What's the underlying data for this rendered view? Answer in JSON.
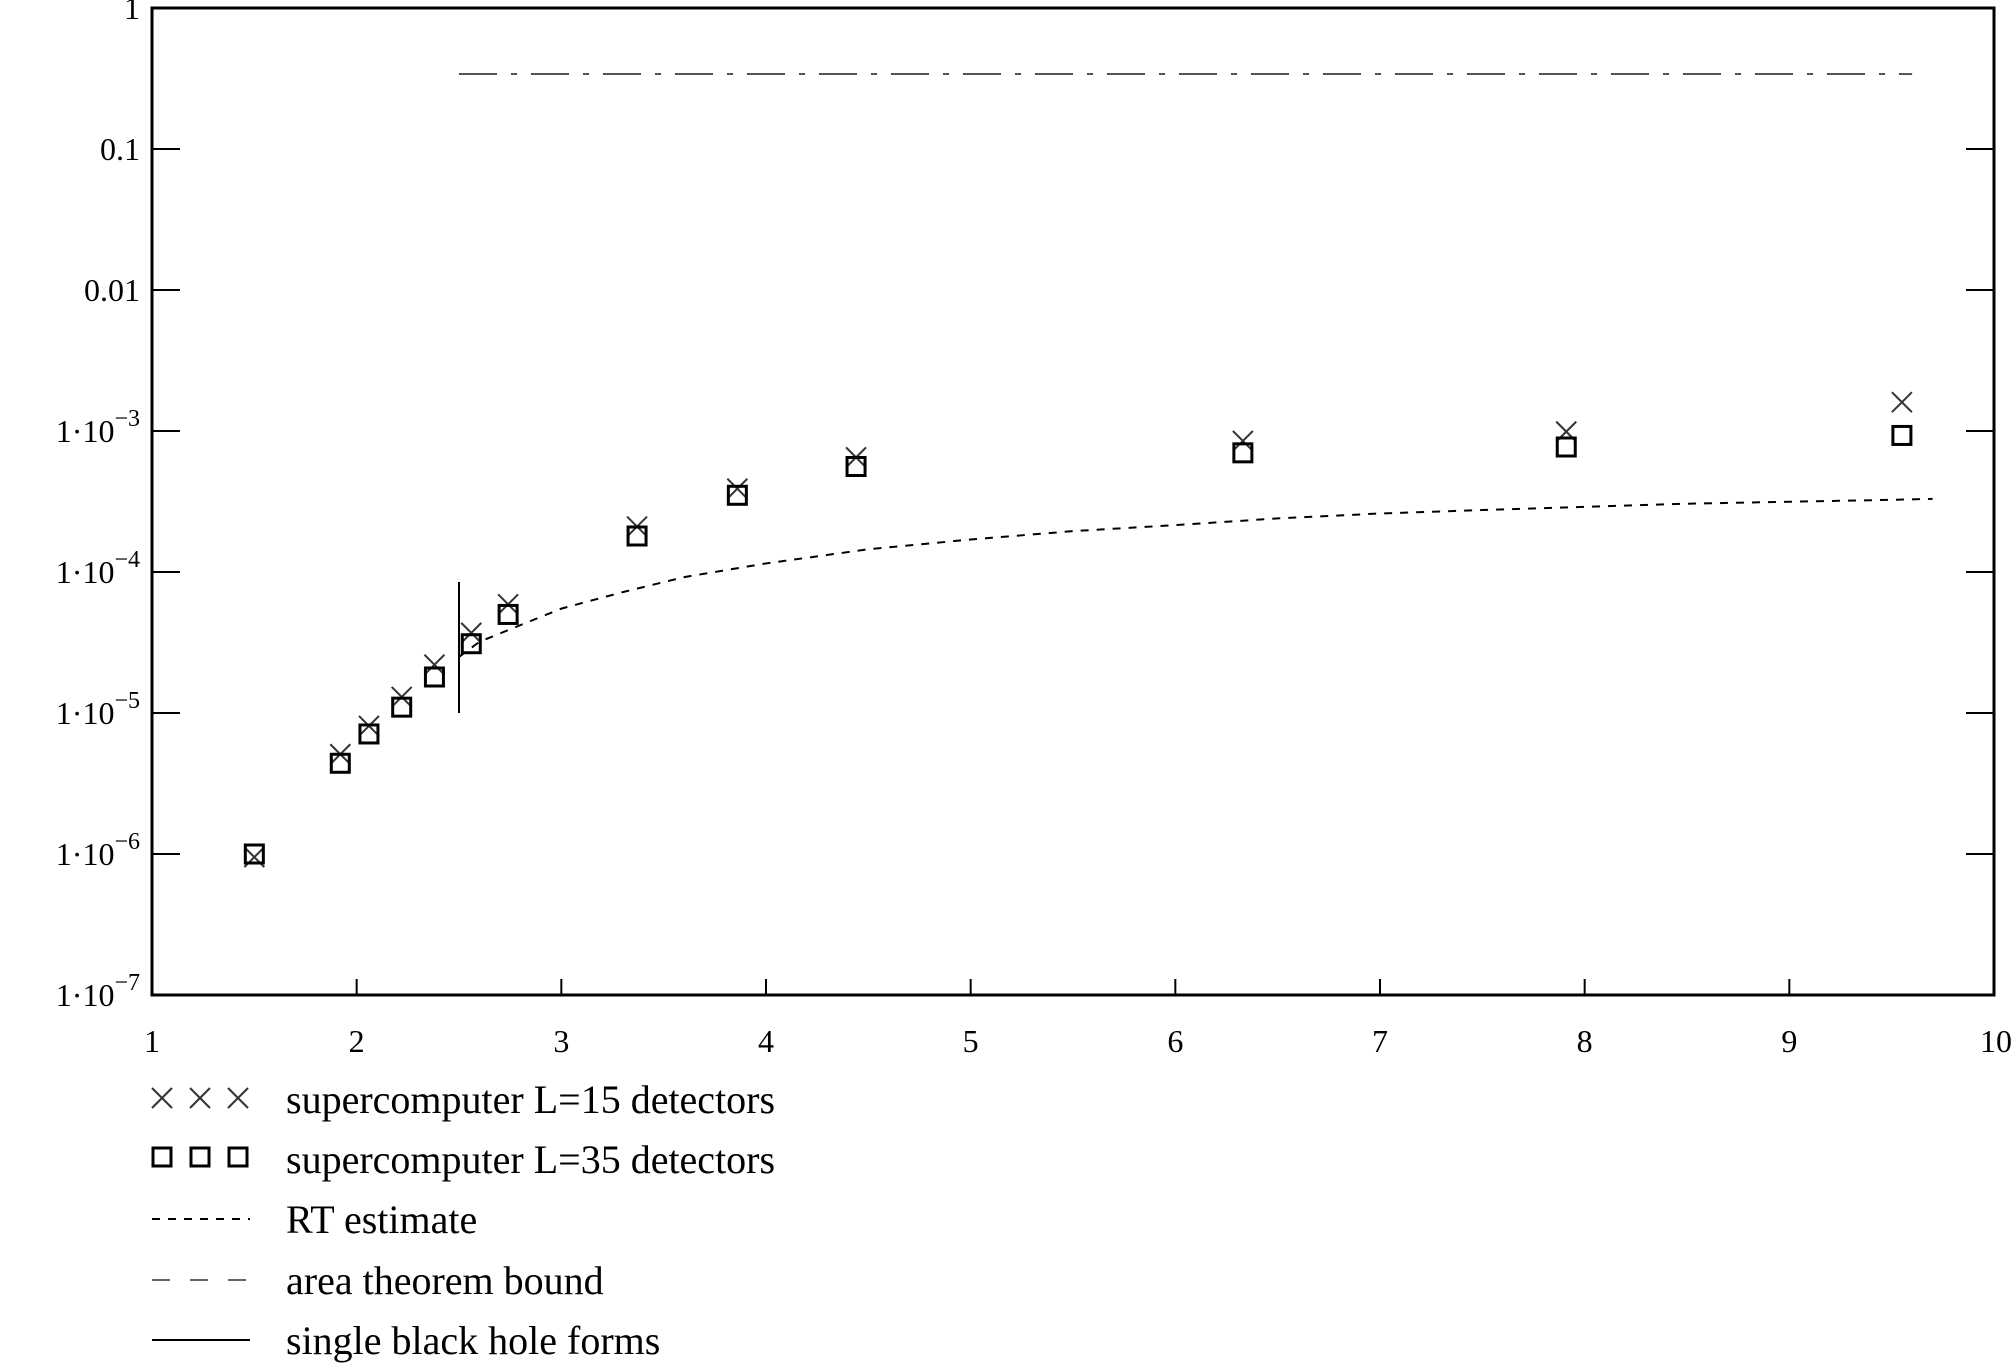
{
  "chart_data": {
    "type": "scatter",
    "title": "",
    "xlabel": "",
    "ylabel": "",
    "xlim": [
      1,
      10
    ],
    "ylim": [
      1e-07,
      1
    ],
    "y_scale": "log",
    "x_ticks": [
      {
        "value": 1,
        "label": "1"
      },
      {
        "value": 2,
        "label": "2"
      },
      {
        "value": 3,
        "label": "3"
      },
      {
        "value": 4,
        "label": "4"
      },
      {
        "value": 5,
        "label": "5"
      },
      {
        "value": 6,
        "label": "6"
      },
      {
        "value": 7,
        "label": "7"
      },
      {
        "value": 8,
        "label": "8"
      },
      {
        "value": 9,
        "label": "9"
      },
      {
        "value": 10,
        "label": "10"
      }
    ],
    "y_ticks": [
      {
        "value": 1,
        "label": "1",
        "mant": "1",
        "exp": ""
      },
      {
        "value": 0.1,
        "label": "0.1",
        "mant": "0.1",
        "exp": ""
      },
      {
        "value": 0.01,
        "label": "0.01",
        "mant": "0.01",
        "exp": ""
      },
      {
        "value": 0.001,
        "label": "1·10^-3",
        "mant": "1·10",
        "exp": "−3"
      },
      {
        "value": 0.0001,
        "label": "1·10^-4",
        "mant": "1·10",
        "exp": "−4"
      },
      {
        "value": 1e-05,
        "label": "1·10^-5",
        "mant": "1·10",
        "exp": "−5"
      },
      {
        "value": 1e-06,
        "label": "1·10^-6",
        "mant": "1·10",
        "exp": "−6"
      },
      {
        "value": 1e-07,
        "label": "1·10^-7",
        "mant": "1·10",
        "exp": "−7"
      }
    ],
    "series": [
      {
        "name": "supercomputer L=15 detectors",
        "marker": "x",
        "x": [
          1.5,
          1.92,
          2.06,
          2.22,
          2.38,
          2.56,
          2.74,
          3.37,
          3.86,
          4.44,
          6.33,
          7.91,
          9.55
        ],
        "y": [
          9.5e-07,
          5.1e-06,
          8.1e-06,
          1.3e-05,
          2.2e-05,
          3.7e-05,
          5.9e-05,
          0.00021,
          0.00039,
          0.00065,
          0.00085,
          0.00099,
          0.0016
        ]
      },
      {
        "name": "supercomputer L=35 detectors",
        "marker": "square",
        "x": [
          1.5,
          1.92,
          2.06,
          2.22,
          2.38,
          2.56,
          2.74,
          3.37,
          3.86,
          4.44,
          6.33,
          7.91,
          9.55
        ],
        "y": [
          1e-06,
          4.4e-06,
          7.1e-06,
          1.1e-05,
          1.8e-05,
          3.1e-05,
          5e-05,
          0.00018,
          0.00035,
          0.00056,
          0.0007,
          0.00077,
          0.00093
        ]
      },
      {
        "name": "RT estimate",
        "line": "dotted",
        "x": [
          2.5,
          2.6,
          2.8,
          3.0,
          3.3,
          3.6,
          4.0,
          4.5,
          5.0,
          5.5,
          6.0,
          6.5,
          7.0,
          7.5,
          8.0,
          8.5,
          9.0,
          9.5,
          9.7
        ],
        "y": [
          2.5e-05,
          3.2e-05,
          4.2e-05,
          5.5e-05,
          7.2e-05,
          9.2e-05,
          0.000115,
          0.000145,
          0.00017,
          0.000195,
          0.000215,
          0.00024,
          0.00026,
          0.000275,
          0.00029,
          0.000305,
          0.000315,
          0.000325,
          0.00033
        ]
      },
      {
        "name": "area theorem bound",
        "line": "dash-dot",
        "x": [
          2.5,
          9.6
        ],
        "y": [
          0.34,
          0.34
        ]
      },
      {
        "name": "single black hole forms",
        "line": "solid-vertical",
        "x": [
          2.5,
          2.5
        ],
        "y": [
          1e-05,
          8.5e-05
        ]
      }
    ],
    "legend": {
      "placement": "bottom-left",
      "entries": [
        {
          "symbol": "× × ×",
          "label": "supercomputer L=15 detectors"
        },
        {
          "symbol": "□ □ □",
          "label": "supercomputer L=35 detectors"
        },
        {
          "symbol": "- - - -",
          "label": "RT estimate"
        },
        {
          "symbol": "—  —",
          "label": "area theorem bound"
        },
        {
          "symbol": "——",
          "label": "single black hole forms"
        }
      ]
    },
    "grid": false
  }
}
